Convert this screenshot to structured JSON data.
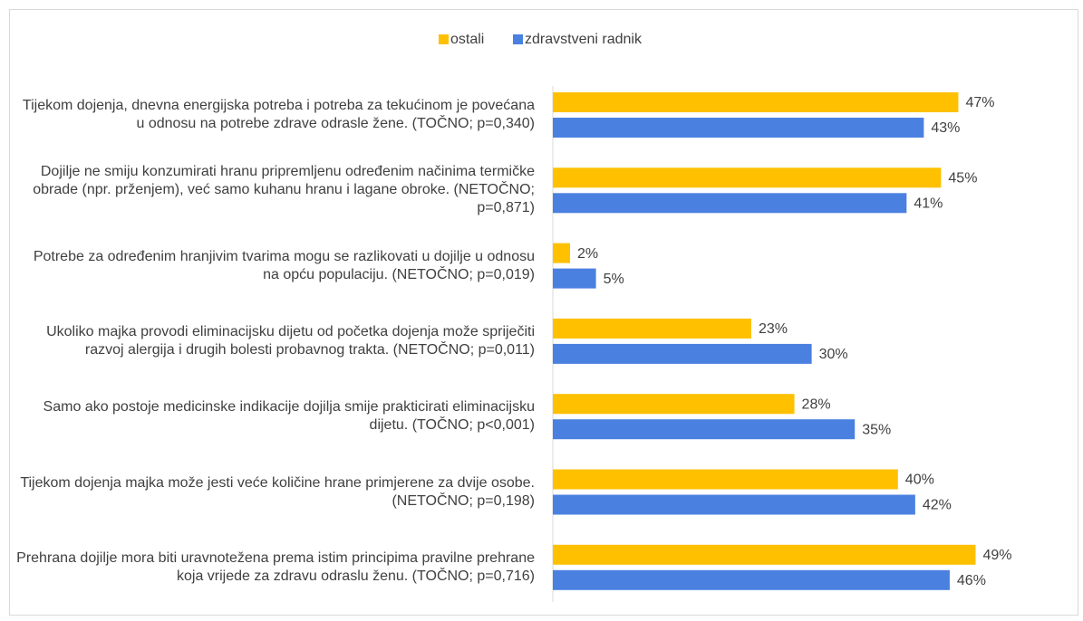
{
  "chart_data": {
    "type": "hbar",
    "categories": [
      "Tijekom dojenja, dnevna energijska potreba i potreba za tekućinom je povećana u odnosu na potrebe zdrave odrasle žene. (TOČNO; p=0,340)",
      "Dojilje ne smiju konzumirati hranu pripremljenu određenim načinima termičke obrade (npr. prženjem), već samo kuhanu hranu i lagane obroke. (NETOČNO; p=0,871)",
      "Potrebe za određenim hranjivim tvarima mogu se razlikovati u dojilje u odnosu na opću populaciju. (NETOČNO; p=0,019)",
      "Ukoliko majka provodi eliminacijsku dijetu od početka dojenja može spriječiti razvoj alergija i drugih bolesti probavnog trakta. (NETOČNO; p=0,011)",
      "Samo ako postoje medicinske indikacije dojilja smije prakticirati eliminacijsku dijetu. (TOČNO; p<0,001)",
      "Tijekom dojenja majka može jesti veće količine hrane primjerene za dvije osobe. (NETOČNO; p=0,198)",
      "Prehrana dojilje mora biti uravnotežena prema istim principima pravilne prehrane koja vrijede za zdravu odraslu ženu. (TOČNO; p=0,716)"
    ],
    "series": [
      {
        "name": "ostali",
        "color": "#ffc000",
        "values": [
          47,
          45,
          2,
          23,
          28,
          40,
          49
        ],
        "value_labels": [
          "47%",
          "45%",
          "2%",
          "23%",
          "28%",
          "40%",
          "49%"
        ]
      },
      {
        "name": "zdravstveni radnik",
        "color": "#4a80e0",
        "values": [
          43,
          41,
          5,
          30,
          35,
          42,
          46
        ],
        "value_labels": [
          "43%",
          "41%",
          "5%",
          "30%",
          "35%",
          "42%",
          "46%"
        ]
      }
    ],
    "xlim": [
      0,
      60
    ],
    "legend": "top"
  }
}
